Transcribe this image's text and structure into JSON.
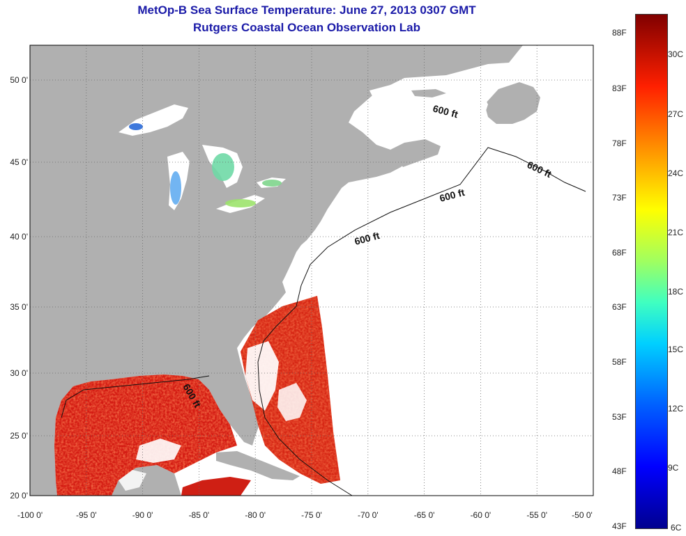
{
  "title_line1": "MetOp-B Sea Surface Temperature:  June 27, 2013 0307 GMT",
  "title_line2": "Rutgers Coastal Ocean Observation Lab",
  "map": {
    "lon_range": [
      -100,
      -50
    ],
    "lat_range": [
      20,
      52.5
    ],
    "lon_ticks": [
      "-100 0'",
      "-95 0'",
      "-90 0'",
      "-85 0'",
      "-80 0'",
      "-75 0'",
      "-70 0'",
      "-65 0'",
      "-60 0'",
      "-55 0'",
      "-50 0'"
    ],
    "lat_ticks": [
      "50 0'",
      "45 0'",
      "40 0'",
      "35 0'",
      "30 0'",
      "25 0'",
      "20 0'"
    ],
    "contour_labels": [
      "600 ft",
      "600 ft",
      "600 ft",
      "600 ft",
      "600 ft"
    ],
    "land_color": "#b0b0b0",
    "water_no_data_color": "#ffffff",
    "warm_sst_color": "#d81a10",
    "grid": "dotted"
  },
  "colorbar": {
    "fahrenheit": [
      "88F",
      "83F",
      "78F",
      "73F",
      "68F",
      "63F",
      "58F",
      "53F",
      "48F",
      "43F"
    ],
    "celsius": [
      "30C",
      "27C",
      "24C",
      "21C",
      "18C",
      "15C",
      "12C",
      "9C",
      "6C"
    ],
    "colormap": "jet",
    "min_c": 6,
    "max_c": 32
  }
}
